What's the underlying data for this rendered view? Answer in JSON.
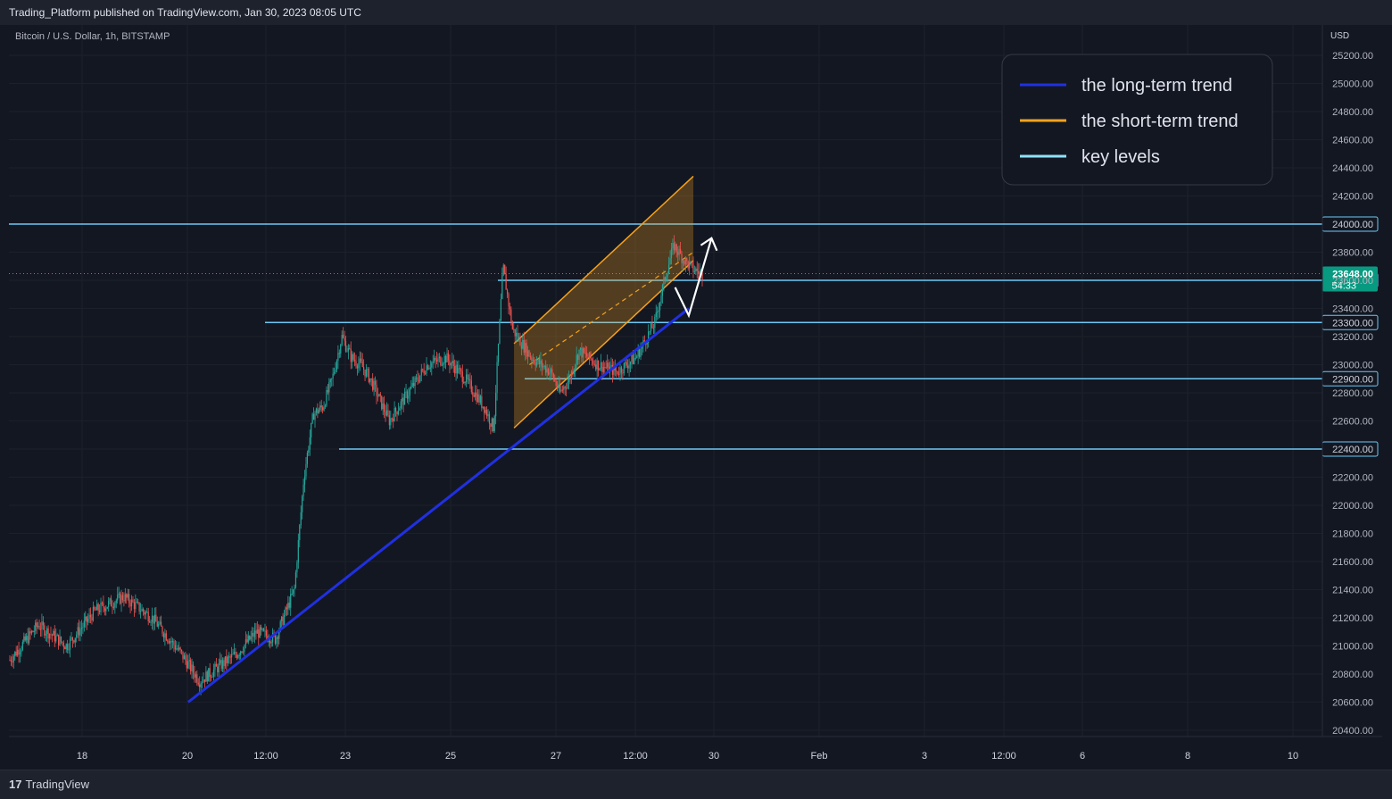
{
  "header": {
    "published": "Trading_Platform published on TradingView.com, Jan 30, 2023 08:05 UTC"
  },
  "footer": {
    "logo_mark": "17",
    "logo_text": "TradingView"
  },
  "chart_data": {
    "type": "candlestick",
    "symbol": "Bitcoin / U.S. Dollar, 1h, BITSTAMP",
    "currency": "USD",
    "ylim": [
      20300,
      25350
    ],
    "y_ticks": [
      20400,
      20600,
      20800,
      21000,
      21200,
      21400,
      21600,
      21800,
      22000,
      22200,
      22400,
      22600,
      22800,
      23000,
      23200,
      23400,
      23600,
      23800,
      24000,
      24200,
      24400,
      24600,
      24800,
      25000,
      25200
    ],
    "x_axis_labels": [
      "18",
      "20",
      "12:00",
      "23",
      "25",
      "27",
      "12:00",
      "30",
      "Feb",
      "3",
      "12:00",
      "6",
      "8",
      "10"
    ],
    "current_price": {
      "value": 23648.0,
      "label": "23648.00",
      "countdown": "54:33"
    },
    "key_levels": [
      {
        "value": 24000,
        "label": "24000.00"
      },
      {
        "value": 23600,
        "label": "23600.00"
      },
      {
        "value": 23300,
        "label": "23300.00"
      },
      {
        "value": 22900,
        "label": "22900.00"
      },
      {
        "value": 22400,
        "label": "22400.00"
      }
    ],
    "price_path": [
      [
        0,
        20900
      ],
      [
        3,
        21150
      ],
      [
        6,
        21000
      ],
      [
        9,
        21250
      ],
      [
        12,
        21350
      ],
      [
        15,
        21200
      ],
      [
        18,
        20950
      ],
      [
        20,
        20750
      ],
      [
        22,
        20850
      ],
      [
        24,
        20950
      ],
      [
        26,
        21100
      ],
      [
        28,
        21050
      ],
      [
        30,
        21400
      ],
      [
        31,
        22200
      ],
      [
        32,
        22650
      ],
      [
        33,
        22700
      ],
      [
        34,
        22900
      ],
      [
        35,
        23200
      ],
      [
        36,
        23050
      ],
      [
        37,
        23000
      ],
      [
        38,
        22900
      ],
      [
        40,
        22600
      ],
      [
        42,
        22800
      ],
      [
        44,
        23000
      ],
      [
        46,
        23050
      ],
      [
        48,
        22900
      ],
      [
        50,
        22700
      ],
      [
        51,
        22550
      ],
      [
        52,
        23700
      ],
      [
        53,
        23250
      ],
      [
        55,
        23050
      ],
      [
        57,
        22950
      ],
      [
        58,
        22800
      ],
      [
        59,
        22900
      ],
      [
        60,
        23100
      ],
      [
        62,
        23000
      ],
      [
        64,
        22950
      ],
      [
        66,
        23050
      ],
      [
        68,
        23300
      ],
      [
        69,
        23600
      ],
      [
        70,
        23850
      ],
      [
        71,
        23750
      ],
      [
        72,
        23680
      ],
      [
        73,
        23648
      ]
    ],
    "series": [
      {
        "name": "the long-term trend",
        "color": "#2030e0",
        "points": [
          [
            19.5,
            20600
          ],
          [
            74.5,
            23400
          ]
        ]
      },
      {
        "name": "the short-term trend",
        "color": "#f7a21b",
        "channel": {
          "start": [
            55.3,
            22550
          ],
          "end": [
            75.0,
            23740
          ],
          "width": 600,
          "midline_start": [
            57,
            23000
          ],
          "midline_end": [
            75.0,
            23800
          ]
        }
      }
    ],
    "projection": [
      [
        73,
        23550
      ],
      [
        74.5,
        23350
      ],
      [
        77,
        23900
      ]
    ],
    "legend": {
      "position": "top-right",
      "entries": [
        {
          "label": "the long-term trend",
          "color": "#2030e0"
        },
        {
          "label": "the short-term trend",
          "color": "#f7a21b"
        },
        {
          "label": "key levels",
          "color": "#8fe0ff"
        }
      ]
    },
    "grid": true
  }
}
